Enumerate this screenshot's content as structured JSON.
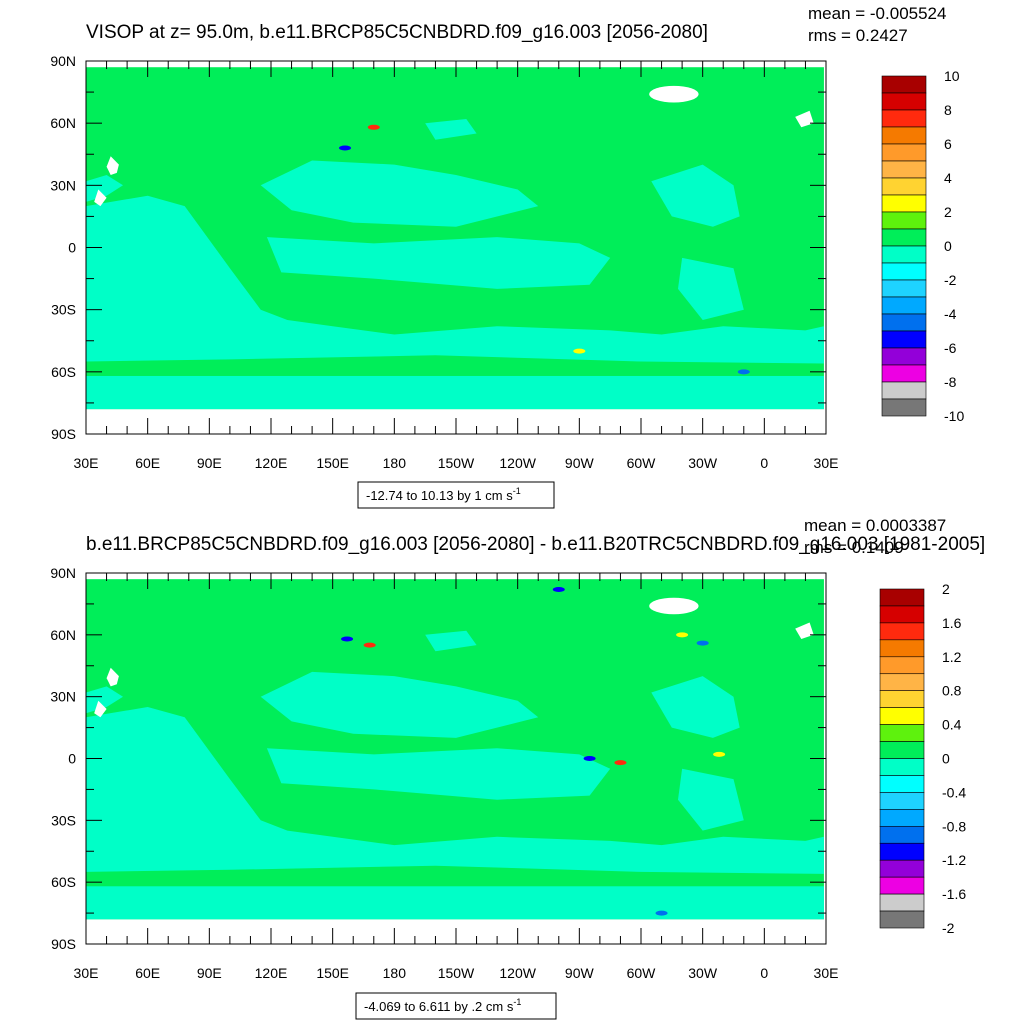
{
  "chart_data": [
    {
      "type": "heatmap",
      "title": "VISOP at z=  95.0m, b.e11.BRCP85C5CNBDRD.f09_g16.003 [2056-2080]",
      "stats": {
        "mean": "mean = -0.005524",
        "rms": "rms = 0.2427"
      },
      "y_ticks": [
        "90N",
        "60N",
        "30N",
        "0",
        "30S",
        "60S",
        "90S"
      ],
      "x_ticks": [
        "30E",
        "60E",
        "90E",
        "120E",
        "150E",
        "180",
        "150W",
        "120W",
        "90W",
        "60W",
        "30W",
        "0",
        "30E"
      ],
      "xlim": [
        30,
        390
      ],
      "ylim": [
        -90,
        90
      ],
      "colorbar": {
        "labels": [
          "10",
          "8",
          "6",
          "4",
          "2",
          "0",
          "-2",
          "-4",
          "-6",
          "-8",
          "-10"
        ],
        "colors": [
          "#a80000",
          "#d60000",
          "#ff2a0e",
          "#f57a00",
          "#ff9a2a",
          "#ffb446",
          "#ffd331",
          "#ffff00",
          "#5ef20d",
          "#00ee59",
          "#00ffc7",
          "#00ffff",
          "#1ed3ff",
          "#00a9ff",
          "#0070ee",
          "#0000ff",
          "#9300d9",
          "#ed00e3",
          "#cccccc",
          "#777777"
        ]
      },
      "info_label": "-12.74 to 10.13 by 1 cm s",
      "info_sup": "-1"
    },
    {
      "type": "heatmap",
      "title": "b.e11.BRCP85C5CNBDRD.f09_g16.003 [2056-2080] - b.e11.B20TRC5CNBDRD.f09_g16.003 [1981-2005]",
      "stats": {
        "mean": "mean = 0.0003387",
        "rms": "rms = 0.1409"
      },
      "y_ticks": [
        "90N",
        "60N",
        "30N",
        "0",
        "30S",
        "60S",
        "90S"
      ],
      "x_ticks": [
        "30E",
        "60E",
        "90E",
        "120E",
        "150E",
        "180",
        "150W",
        "120W",
        "90W",
        "60W",
        "30W",
        "0",
        "30E"
      ],
      "xlim": [
        30,
        390
      ],
      "ylim": [
        -90,
        90
      ],
      "colorbar": {
        "labels": [
          "2",
          "1.6",
          "1.2",
          "0.8",
          "0.4",
          "0",
          "-0.4",
          "-0.8",
          "-1.2",
          "-1.6",
          "-2"
        ],
        "colors": [
          "#a80000",
          "#d60000",
          "#ff2a0e",
          "#f57a00",
          "#ff9a2a",
          "#ffb446",
          "#ffd331",
          "#ffff00",
          "#5ef20d",
          "#00ee59",
          "#00ffc7",
          "#00ffff",
          "#1ed3ff",
          "#00a9ff",
          "#0070ee",
          "#0000ff",
          "#9300d9",
          "#ed00e3",
          "#cccccc",
          "#777777"
        ]
      },
      "info_label": "-4.069 to 6.611 by .2 cm s",
      "info_sup": "-1"
    }
  ]
}
